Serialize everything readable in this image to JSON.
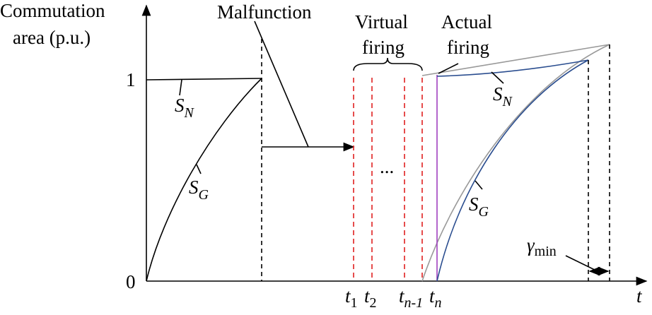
{
  "axes": {
    "y_title": [
      "Commutation",
      "area (p.u.)"
    ],
    "y_tick_1": "1",
    "y_tick_0": "0",
    "x_title": "t"
  },
  "annotations": {
    "malfunction": "Malfunction",
    "virtual_firing": [
      "Virtual",
      "firing"
    ],
    "actual_firing": [
      "Actual",
      "firing"
    ],
    "ellipsis": "...",
    "gamma": {
      "symbol": "γ",
      "sub": "min"
    }
  },
  "curve_labels": [
    {
      "symbol": "S",
      "sub": "N"
    },
    {
      "symbol": "S",
      "sub": "G"
    },
    {
      "symbol": "S",
      "sub": "N"
    },
    {
      "symbol": "S",
      "sub": "G"
    }
  ],
  "time_labels": [
    {
      "symbol": "t",
      "sub": "1"
    },
    {
      "symbol": "t",
      "sub": "2"
    },
    {
      "symbol": "t",
      "sub": "n-1"
    },
    {
      "symbol": "t",
      "sub": "n"
    }
  ]
}
